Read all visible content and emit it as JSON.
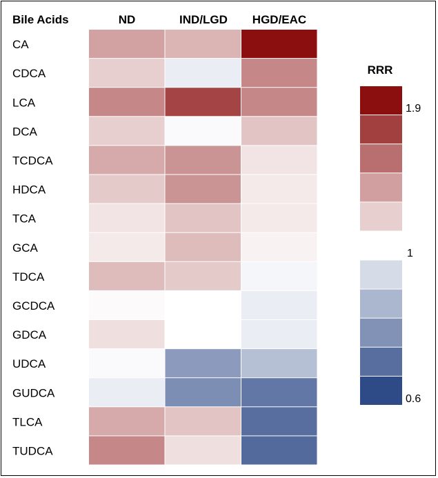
{
  "chart_data": {
    "type": "heatmap",
    "row_header": "Bile Acids",
    "columns": [
      "ND",
      "IND/LGD",
      "HGD/EAC"
    ],
    "rows": [
      "CA",
      "CDCA",
      "LCA",
      "DCA",
      "TCDCA",
      "HDCA",
      "TCA",
      "GCA",
      "TDCA",
      "GCDCA",
      "GDCA",
      "UDCA",
      "GUDCA",
      "TLCA",
      "TUDCA"
    ],
    "values": [
      [
        1.35,
        1.28,
        1.95
      ],
      [
        1.18,
        0.96,
        1.45
      ],
      [
        1.45,
        1.7,
        1.45
      ],
      [
        1.18,
        0.99,
        1.22
      ],
      [
        1.32,
        1.4,
        1.1
      ],
      [
        1.2,
        1.4,
        1.08
      ],
      [
        1.1,
        1.22,
        1.08
      ],
      [
        1.08,
        1.25,
        1.05
      ],
      [
        1.25,
        1.2,
        0.98
      ],
      [
        1.02,
        1.0,
        0.96
      ],
      [
        1.12,
        1.0,
        0.96
      ],
      [
        0.99,
        0.78,
        0.86
      ],
      [
        0.96,
        0.75,
        0.7
      ],
      [
        1.32,
        1.22,
        0.68
      ],
      [
        1.45,
        1.12,
        0.67
      ]
    ],
    "colorbar": {
      "title": "RRR",
      "min": 0.6,
      "mid": 1,
      "max": 1.9,
      "tick_labels": [
        "1.9",
        "1",
        "0.6"
      ],
      "low_color": "#2e4a87",
      "mid_color": "#ffffff",
      "high_color": "#8b0f0f"
    }
  }
}
